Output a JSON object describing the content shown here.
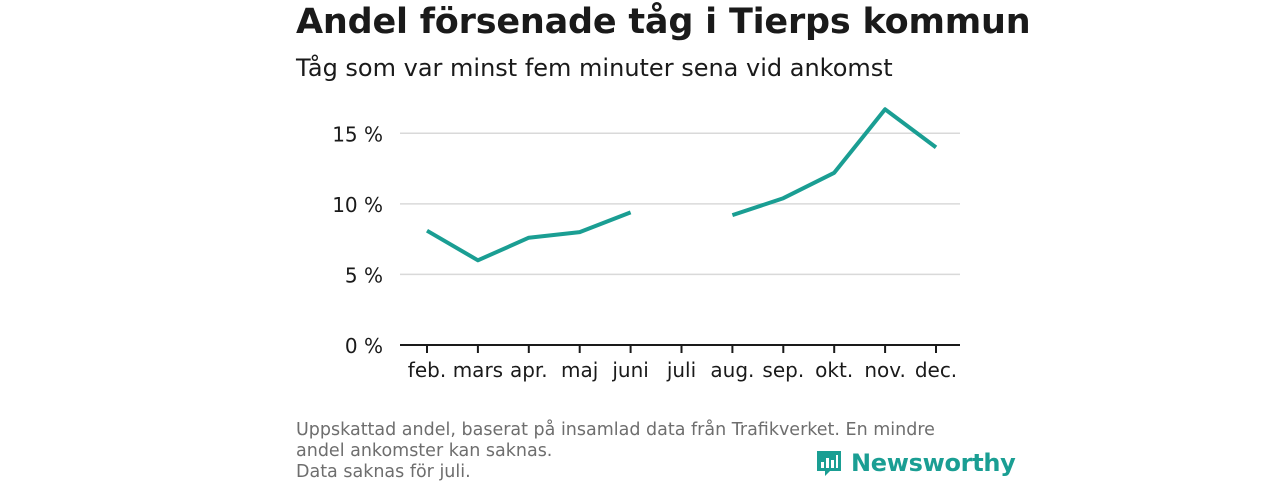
{
  "title": "Andel försenade tåg i Tierps kommun",
  "subtitle": "Tåg som var minst fem minuter sena vid ankomst",
  "chart_data": {
    "type": "line",
    "categories": [
      "feb.",
      "mars",
      "apr.",
      "maj",
      "juni",
      "juli",
      "aug.",
      "sep.",
      "okt.",
      "nov.",
      "dec."
    ],
    "series": [
      {
        "values": [
          8.1,
          6.0,
          7.6,
          8.0,
          9.4,
          null,
          9.2,
          10.4,
          12.2,
          16.7,
          14.0
        ]
      }
    ],
    "yticks": [
      0,
      5,
      10,
      15
    ],
    "ytick_labels": [
      "0 %",
      "5 %",
      "10 %",
      "15 %"
    ],
    "ylim": [
      0,
      17.5
    ],
    "grid": true,
    "color": "#1a9e93"
  },
  "footnote": {
    "line1": "Uppskattad andel, baserat på insamlad data från Trafikverket. En mindre andel ankomster kan saknas.",
    "line2": "Data saknas för juli."
  },
  "logo": {
    "text": "Newsworthy",
    "icon": "newsworthy-logo-icon",
    "color": "#1a9e93"
  }
}
